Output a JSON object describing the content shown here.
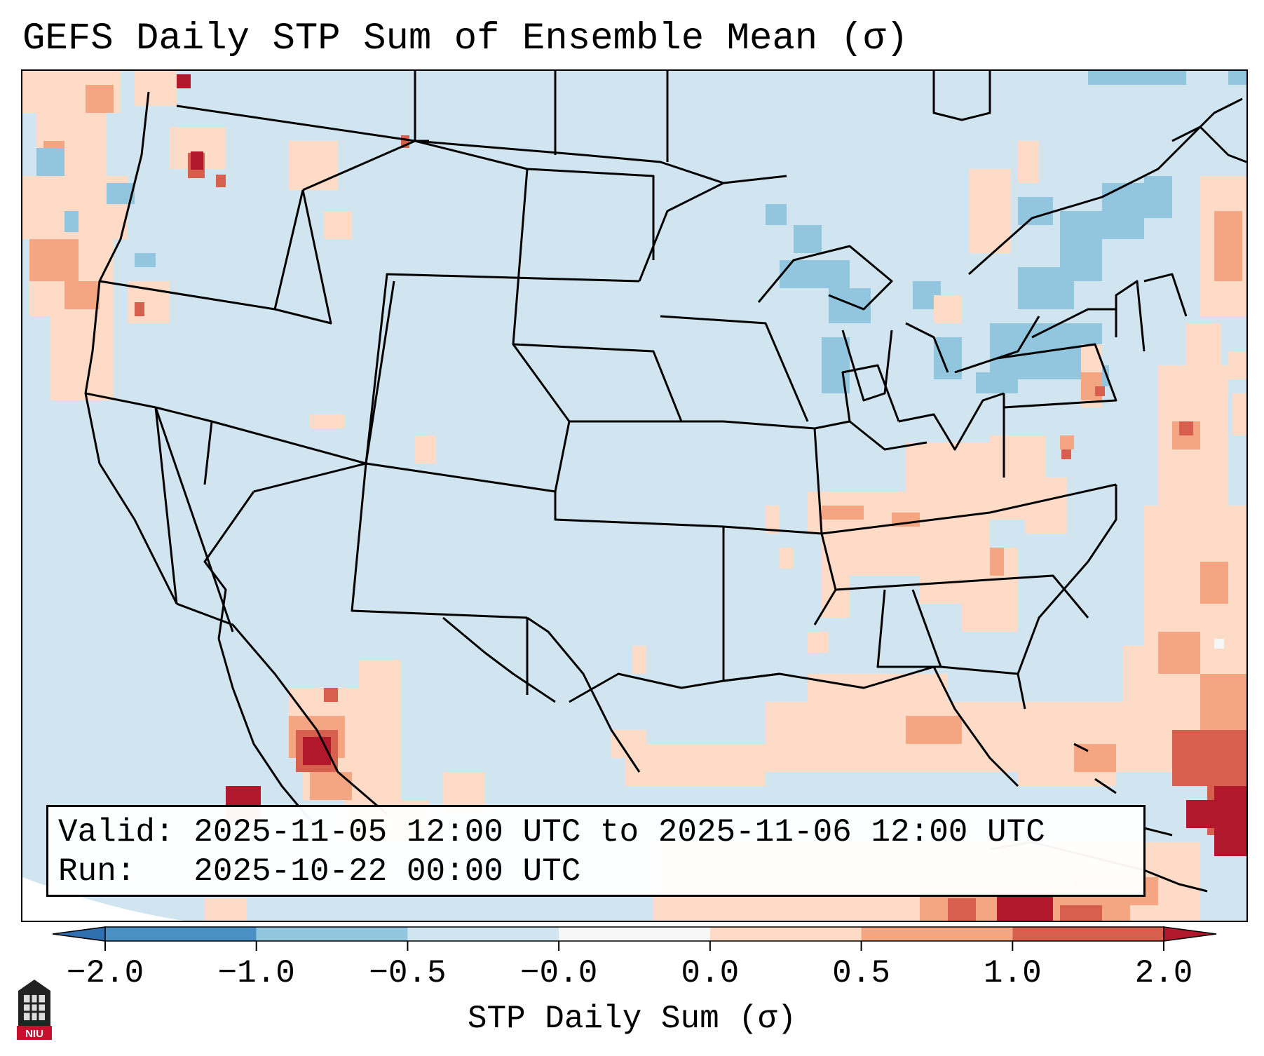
{
  "title": "GEFS Daily STP Sum of Ensemble Mean (σ)",
  "info": {
    "valid_line": "Valid: 2025-11-05 12:00 UTC to 2025-11-06 12:00 UTC",
    "run_line": "Run:   2025-10-22 00:00 UTC"
  },
  "colorbar": {
    "label": "STP Daily Sum (σ)",
    "tick_labels": [
      "−2.0",
      "−1.0",
      "−0.5",
      "−0.0",
      "0.0",
      "0.5",
      "1.0",
      "2.0"
    ],
    "bins": [
      {
        "range": "< -2.0",
        "color": "#2f6fb0"
      },
      {
        "range": "-2.0 to -1.0",
        "color": "#4a90c4"
      },
      {
        "range": "-1.0 to -0.5",
        "color": "#92c5de"
      },
      {
        "range": "-0.5 to -0.0",
        "color": "#d1e5f0"
      },
      {
        "range": "-0.0 to 0.0",
        "color": "#f7f7f7"
      },
      {
        "range": "0.0 to 0.5",
        "color": "#fddbc7"
      },
      {
        "range": "0.5 to 1.0",
        "color": "#f4a582"
      },
      {
        "range": "1.0 to 2.0",
        "color": "#d6604d"
      },
      {
        "range": "> 2.0",
        "color": "#b2182b"
      }
    ]
  },
  "map": {
    "background_color": "#d1e5f0",
    "outside_color": "#ffffff",
    "boundary_color": "#000000"
  },
  "logo": {
    "text": "NIU"
  }
}
